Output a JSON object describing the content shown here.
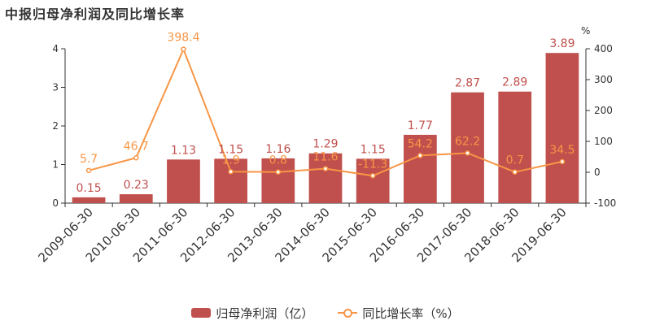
{
  "title": "中报归母净利润及同比增长率",
  "colors": {
    "bar": "#c0504d",
    "bar_label": "#c0504d",
    "line": "#f79646",
    "axis": "#333333"
  },
  "legend": [
    {
      "label": "归母净利润（亿）",
      "type": "bar"
    },
    {
      "label": "同比增长率（%）",
      "type": "line"
    }
  ],
  "chart_data": {
    "type": "bar",
    "categories": [
      "2009-06-30",
      "2010-06-30",
      "2011-06-30",
      "2012-06-30",
      "2013-06-30",
      "2014-06-30",
      "2015-06-30",
      "2016-06-30",
      "2017-06-30",
      "2018-06-30",
      "2019-06-30"
    ],
    "series": [
      {
        "name": "归母净利润（亿）",
        "type": "bar",
        "axis": "left",
        "values": [
          0.15,
          0.23,
          1.13,
          1.15,
          1.16,
          1.29,
          1.15,
          1.77,
          2.87,
          2.89,
          3.89
        ]
      },
      {
        "name": "同比增长率（%）",
        "type": "line",
        "axis": "right",
        "values": [
          5.7,
          46.7,
          398.4,
          1.9,
          0.8,
          11.6,
          -11.3,
          54.2,
          62.2,
          0.7,
          34.5
        ]
      }
    ],
    "y_left": {
      "range": [
        0,
        4
      ],
      "ticks": [
        0,
        1,
        2,
        3,
        4
      ]
    },
    "y_right": {
      "range": [
        -100,
        400
      ],
      "ticks": [
        -100,
        0,
        100,
        200,
        300,
        400
      ],
      "unit": "%"
    },
    "grid": false,
    "legend_position": "bottom"
  }
}
